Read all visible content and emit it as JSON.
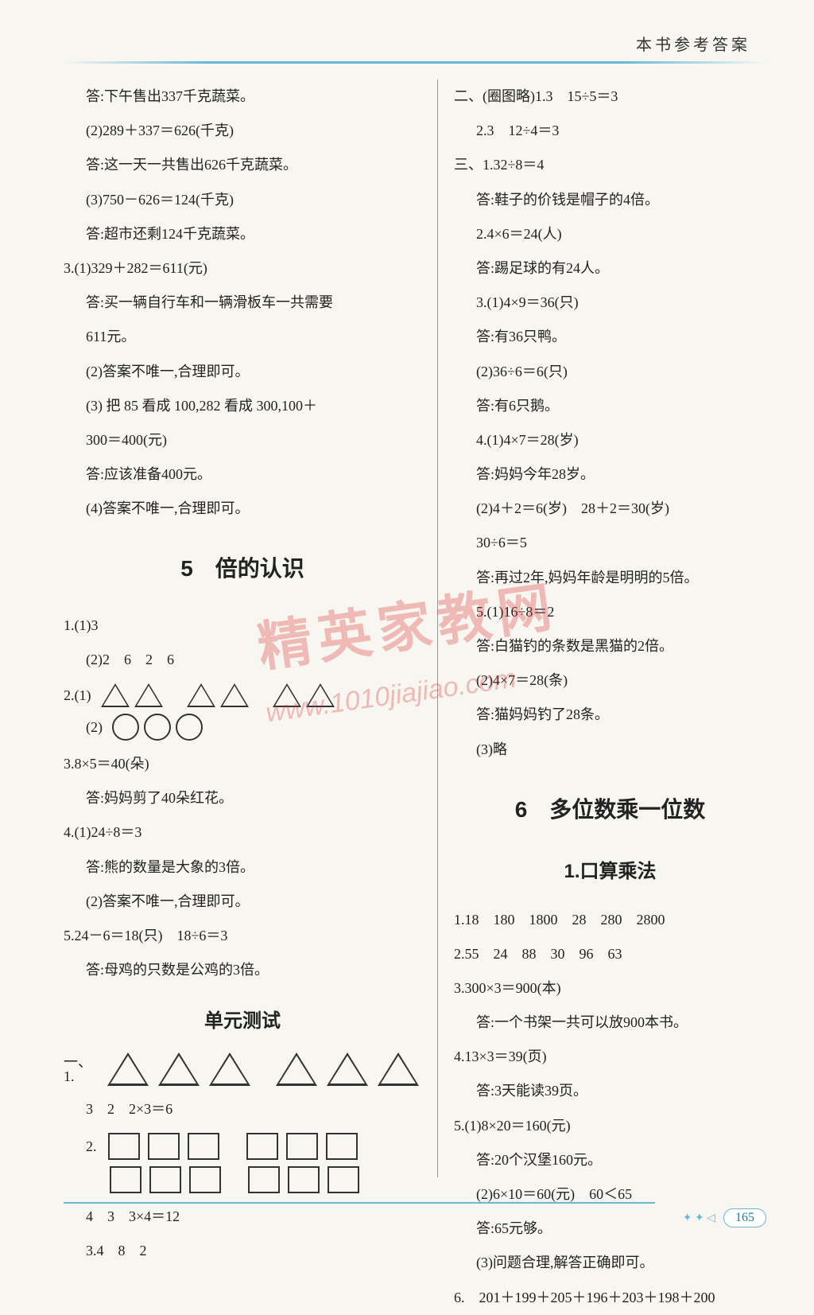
{
  "header": "本书参考答案",
  "page_number": "165",
  "watermark_text": "精英家教网",
  "watermark_url": "www.1010jiajiao.com",
  "colors": {
    "text": "#222222",
    "accent": "#6bb8d6",
    "watermark": "rgba(220,60,60,0.32)",
    "background": "#f8f6f0"
  },
  "left": {
    "l1": "答:下午售出337千克蔬菜。",
    "l2": "(2)289＋337＝626(千克)",
    "l3": "答:这一天一共售出626千克蔬菜。",
    "l4": "(3)750－626＝124(千克)",
    "l5": "答:超市还剩124千克蔬菜。",
    "l6": "3.(1)329＋282＝611(元)",
    "l7": "答:买一辆自行车和一辆滑板车一共需要",
    "l8": "611元。",
    "l9": "(2)答案不唯一,合理即可。",
    "l10": "(3) 把 85 看成 100,282 看成 300,100＋",
    "l11": "300＝400(元)",
    "l12": "答:应该准备400元。",
    "l13": "(4)答案不唯一,合理即可。",
    "ch5": "5　倍的认识",
    "l14": "1.(1)3",
    "l15": "(2)2　6　2　6",
    "l16a": "2.(1)",
    "l16b": "(2)",
    "l17": "3.8×5＝40(朵)",
    "l18": "答:妈妈剪了40朵红花。",
    "l19": "4.(1)24÷8＝3",
    "l20": "答:熊的数量是大象的3倍。",
    "l21": "(2)答案不唯一,合理即可。",
    "l22": "5.24－6＝18(只)　18÷6＝3",
    "l23": "答:母鸡的只数是公鸡的3倍。",
    "unit_test": "单元测试",
    "l24": "一、1.",
    "l25": "3　2　2×3＝6",
    "l26": "2.",
    "l27": "4　3　3×4＝12",
    "l28": "3.4　8　2"
  },
  "right": {
    "r1": "二、(圈图略)1.3　15÷5＝3",
    "r2": "2.3　12÷4＝3",
    "r3": "三、1.32÷8＝4",
    "r4": "答:鞋子的价钱是帽子的4倍。",
    "r5": "2.4×6＝24(人)",
    "r6": "答:踢足球的有24人。",
    "r7": "3.(1)4×9＝36(只)",
    "r8": "答:有36只鸭。",
    "r9": "(2)36÷6＝6(只)",
    "r10": "答:有6只鹅。",
    "r11": "4.(1)4×7＝28(岁)",
    "r12": "答:妈妈今年28岁。",
    "r13": "(2)4＋2＝6(岁)　28＋2＝30(岁)",
    "r14": "30÷6＝5",
    "r15": "答:再过2年,妈妈年龄是明明的5倍。",
    "r16": "5.(1)16÷8＝2",
    "r17": "答:白猫钓的条数是黑猫的2倍。",
    "r18": "(2)4×7＝28(条)",
    "r19": "答:猫妈妈钓了28条。",
    "r20": "(3)略",
    "ch6": "6　多位数乘一位数",
    "sub6": "1.口算乘法",
    "r21": "1.18　180　1800　28　280　2800",
    "r22": "2.55　24　88　30　96　63",
    "r23": "3.300×3＝900(本)",
    "r24": "答:一个书架一共可以放900本书。",
    "r25": "4.13×3＝39(页)",
    "r26": "答:3天能读39页。",
    "r27": "5.(1)8×20＝160(元)",
    "r28": "答:20个汉堡160元。",
    "r29": "(2)6×10＝60(元)　60＜65",
    "r30": "答:65元够。",
    "r31": "(3)问题合理,解答正确即可。",
    "r32": "6.　201＋199＋205＋196＋203＋198＋200"
  }
}
